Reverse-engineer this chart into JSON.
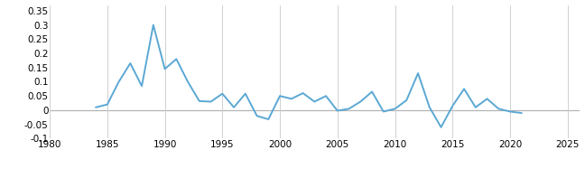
{
  "x": [
    1984,
    1985,
    1986,
    1987,
    1988,
    1989,
    1990,
    1991,
    1992,
    1993,
    1994,
    1995,
    1996,
    1997,
    1998,
    1999,
    2000,
    2001,
    2002,
    2003,
    2004,
    2005,
    2006,
    2007,
    2008,
    2009,
    2010,
    2011,
    2012,
    2013,
    2014,
    2015,
    2016,
    2017,
    2018,
    2019,
    2020,
    2021
  ],
  "y": [
    0.01,
    0.02,
    0.1,
    0.165,
    0.085,
    0.3,
    0.145,
    0.18,
    0.1,
    0.032,
    0.03,
    0.058,
    0.01,
    0.058,
    -0.02,
    -0.032,
    0.05,
    0.04,
    0.06,
    0.03,
    0.05,
    -0.002,
    0.005,
    0.03,
    0.065,
    -0.005,
    0.005,
    0.035,
    0.13,
    0.01,
    -0.06,
    0.015,
    0.075,
    0.01,
    0.04,
    0.005,
    -0.005,
    -0.01
  ],
  "line_color": "#5ba8d4",
  "line_width": 1.4,
  "xlim": [
    1980,
    2026
  ],
  "ylim": [
    -0.1,
    0.37
  ],
  "xticks": [
    1980,
    1985,
    1990,
    1995,
    2000,
    2005,
    2010,
    2015,
    2020,
    2025
  ],
  "yticks": [
    -0.1,
    -0.05,
    0.0,
    0.05,
    0.1,
    0.15,
    0.2,
    0.25,
    0.3,
    0.35
  ],
  "ytick_labels": [
    "-0.1",
    "-0.05",
    "0",
    "0.05",
    "0.1",
    "0.15",
    "0.2",
    "0.25",
    "0.3",
    "0.35"
  ],
  "grid_color": "#d0d0d0",
  "background_color": "#ffffff",
  "zero_line_color": "#b0b0b0",
  "tick_fontsize": 7.5
}
